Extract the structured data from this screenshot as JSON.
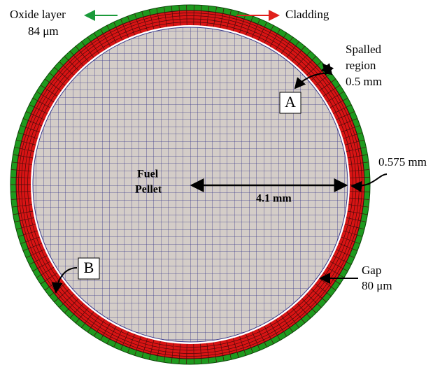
{
  "labels": {
    "oxide_layer": "Oxide layer",
    "oxide_thickness": "84 μm",
    "cladding": "Cladding",
    "spalled_1": "Spalled",
    "spalled_2": "region",
    "spalled_size": "0.5 mm",
    "point_a": "A",
    "cladding_thickness": "0.575 mm",
    "fuel_1": "Fuel",
    "fuel_2": "Pellet",
    "radius": "4.1 mm",
    "point_b": "B",
    "gap": "Gap",
    "gap_size": "80 μm"
  }
}
